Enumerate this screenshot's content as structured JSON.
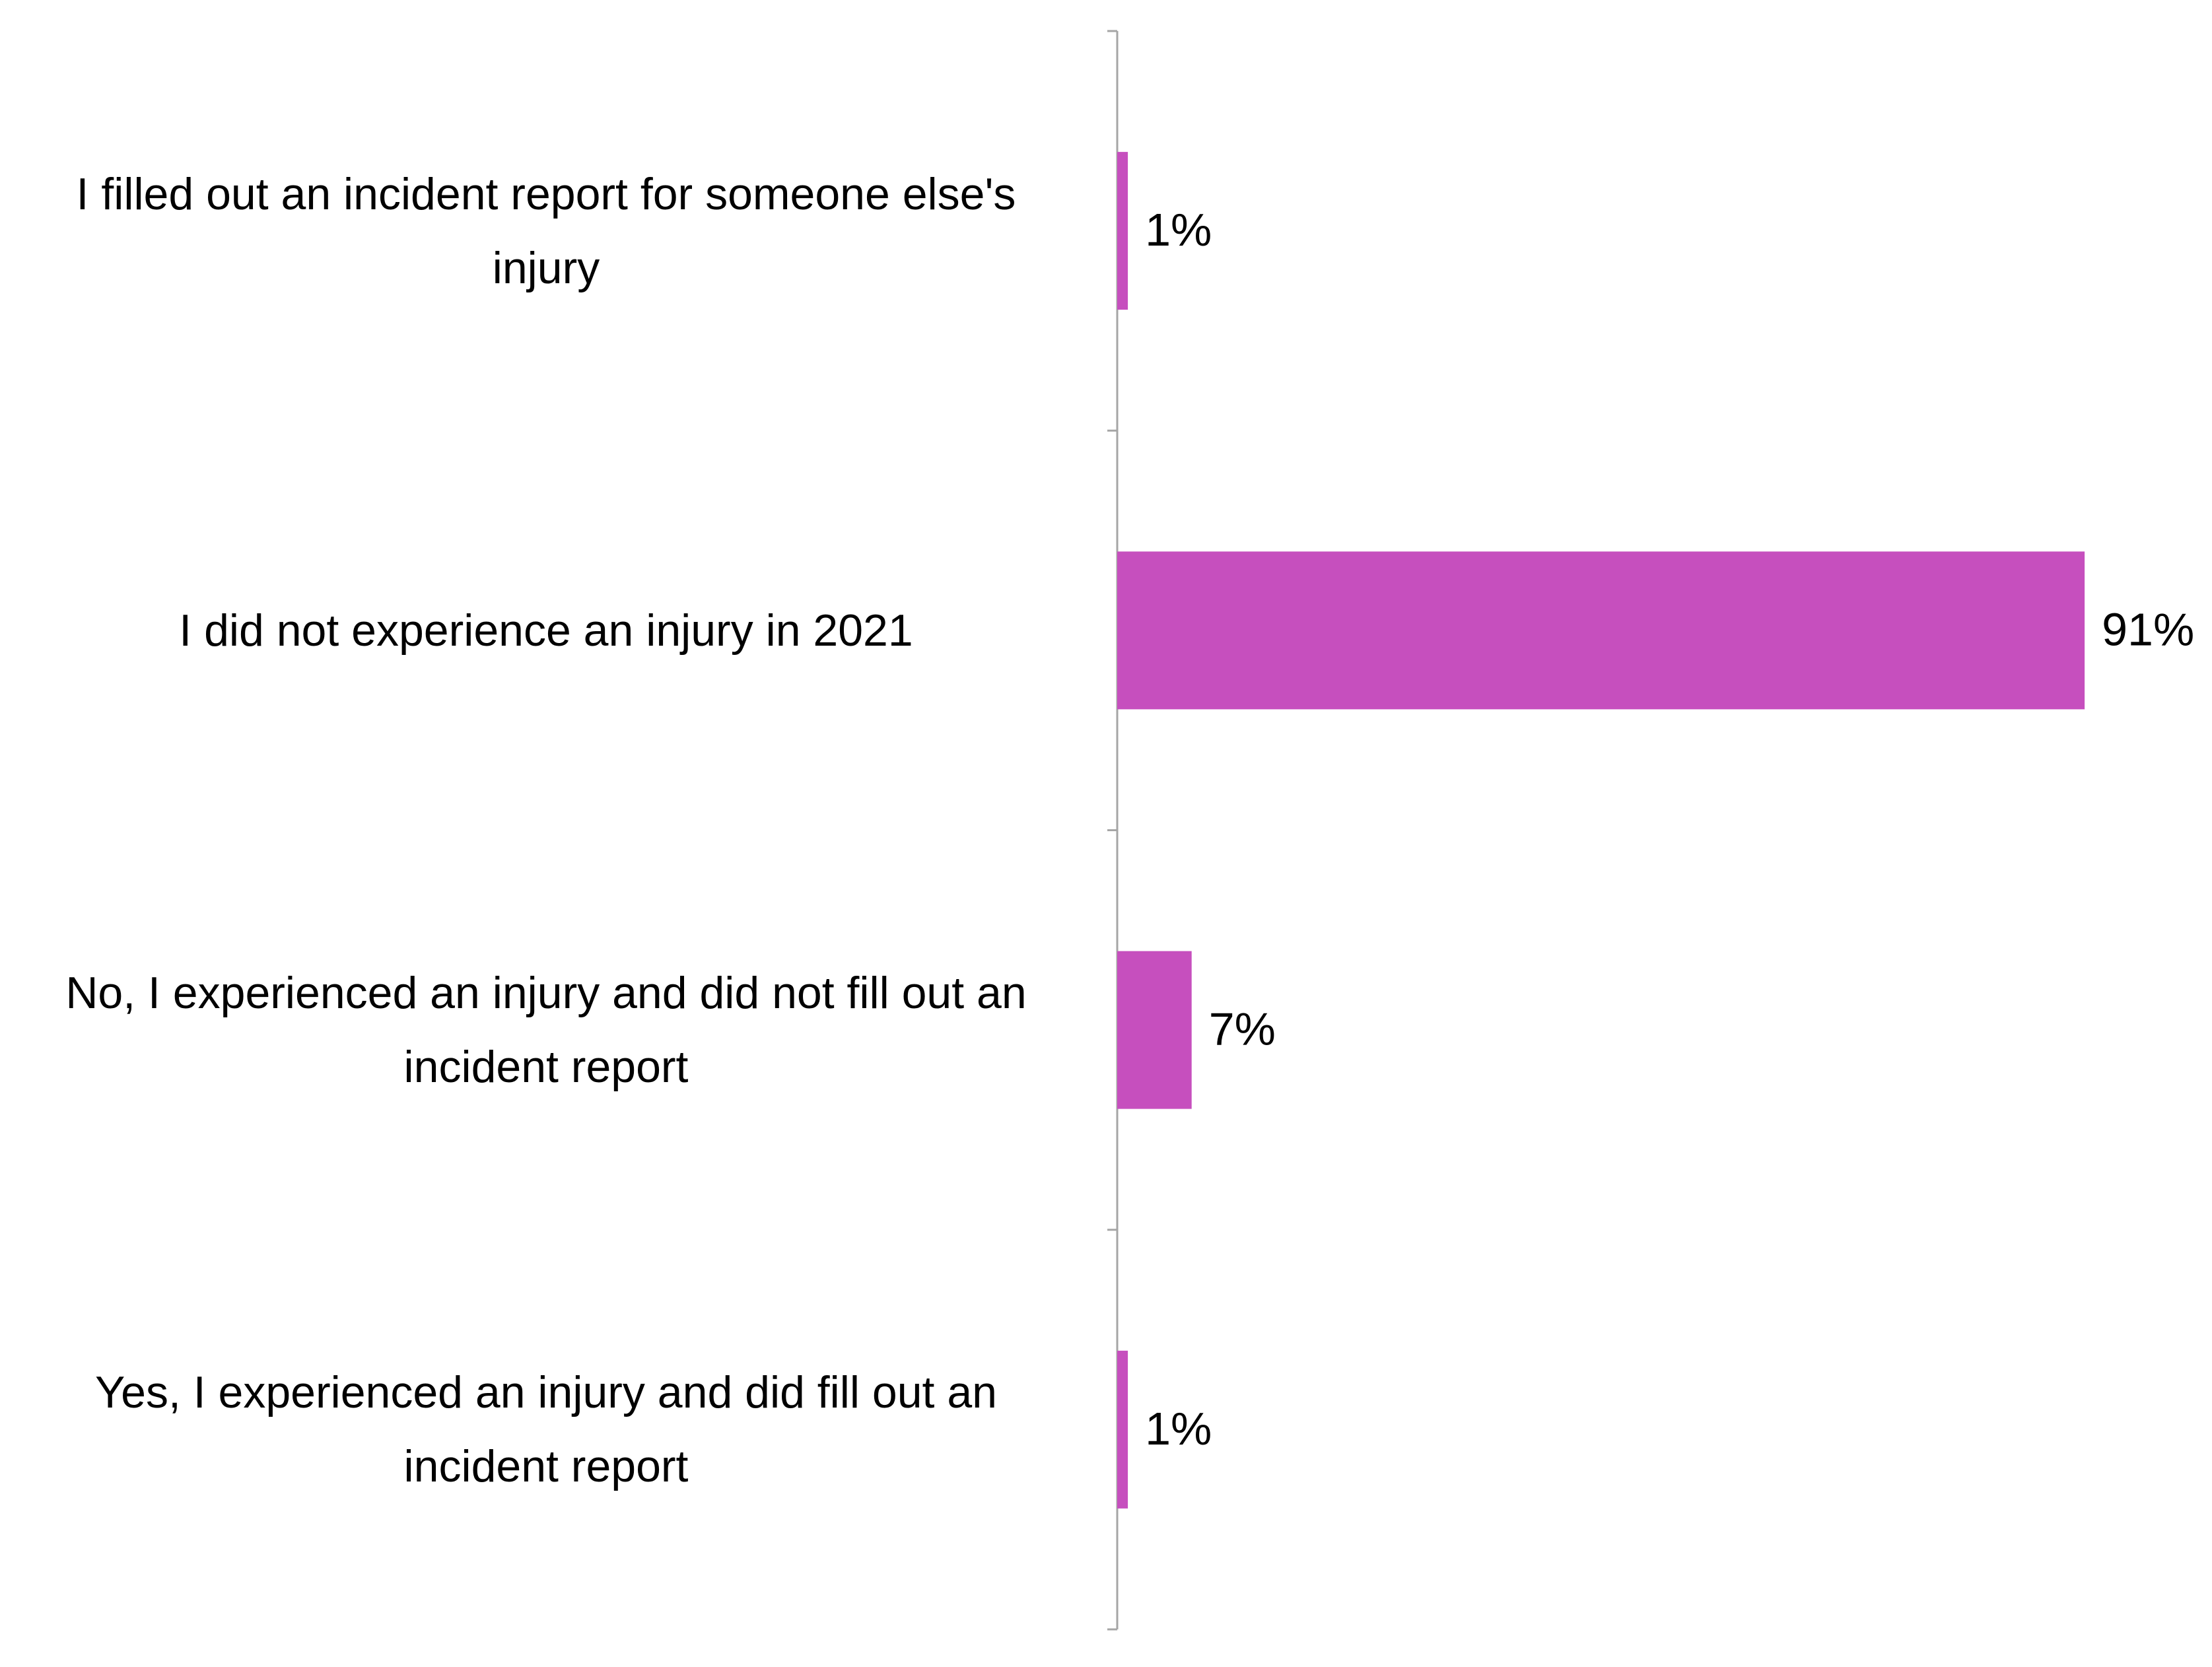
{
  "chart_data": {
    "type": "bar",
    "orientation": "horizontal",
    "categories": [
      "I filled out an incident report for someone else's injury",
      "I did not experience an injury in 2021",
      "No, I experienced an injury and did not fill out an incident report",
      "Yes, I experienced an injury and did fill out an incident report"
    ],
    "values": [
      1,
      91,
      7,
      1
    ],
    "value_labels": [
      "1%",
      "91%",
      "7%",
      "1%"
    ],
    "color": "#c64fbe"
  }
}
